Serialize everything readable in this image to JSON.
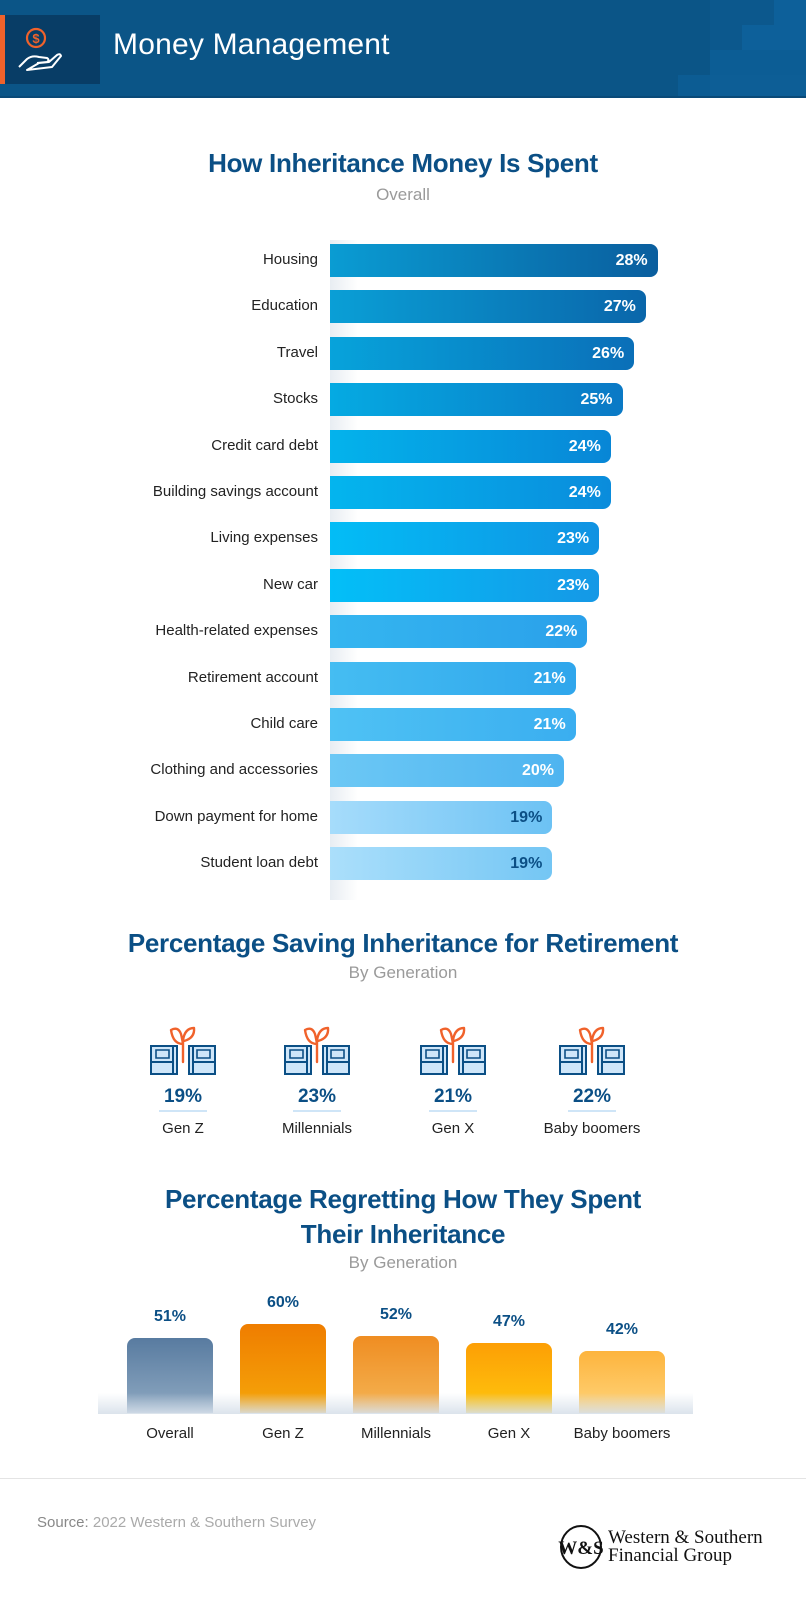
{
  "header": {
    "title": "Money Management",
    "icon": "hand-holding-dollar-icon",
    "accent": "#f0622b",
    "background": "#0b5587"
  },
  "chart_data": [
    {
      "type": "bar",
      "orientation": "horizontal",
      "title": "How Inheritance Money Is Spent",
      "subtitle": "Overall",
      "categories": [
        "Housing",
        "Education",
        "Travel",
        "Stocks",
        "Credit card debt",
        "Building savings account",
        "Living expenses",
        "New car",
        "Health-related expenses",
        "Retirement account",
        "Child care",
        "Clothing and accessories",
        "Down payment for home",
        "Student loan debt"
      ],
      "values": [
        28,
        27,
        26,
        25,
        24,
        24,
        23,
        23,
        22,
        21,
        21,
        20,
        19,
        19
      ],
      "labels": [
        "28%",
        "27%",
        "26%",
        "25%",
        "24%",
        "24%",
        "23%",
        "23%",
        "22%",
        "21%",
        "21%",
        "20%",
        "19%",
        "19%"
      ],
      "colors": [
        [
          "#0a9cd3",
          "#0a5e9e"
        ],
        [
          "#0a9fd6",
          "#0a66aa"
        ],
        [
          "#07a3db",
          "#0a6fb8"
        ],
        [
          "#05aae2",
          "#0a79c5"
        ],
        [
          "#04b3ec",
          "#0886d6"
        ],
        [
          "#04b5ee",
          "#0a8cdc"
        ],
        [
          "#03bdf6",
          "#1092e2"
        ],
        [
          "#03bff8",
          "#1598e6"
        ],
        [
          "#35b6f0",
          "#2aa0ea"
        ],
        [
          "#45bdf2",
          "#2fa6ec"
        ],
        [
          "#4fc2f4",
          "#3aaef0"
        ],
        [
          "#6cc8f5",
          "#4eb4f0"
        ],
        [
          "#a6dcfb",
          "#6cc2f4"
        ],
        [
          "#abdffb",
          "#74c6f4"
        ]
      ],
      "text_colors": [
        "#ffffff",
        "#ffffff",
        "#ffffff",
        "#ffffff",
        "#ffffff",
        "#ffffff",
        "#ffffff",
        "#ffffff",
        "#ffffff",
        "#ffffff",
        "#ffffff",
        "#ffffff",
        "#0b4f85",
        "#0b4f85"
      ]
    },
    {
      "type": "table",
      "title": "Percentage Saving Inheritance for Retirement",
      "subtitle": "By Generation",
      "categories": [
        "Gen Z",
        "Millennials",
        "Gen X",
        "Baby boomers"
      ],
      "values": [
        19,
        23,
        21,
        22
      ],
      "labels": [
        "19%",
        "23%",
        "21%",
        "22%"
      ],
      "icon": "money-stack-sprout-icon"
    },
    {
      "type": "bar",
      "orientation": "vertical",
      "title_lines": [
        "Percentage Regretting How They Spent",
        "Their Inheritance"
      ],
      "subtitle": "By Generation",
      "categories": [
        "Overall",
        "Gen Z",
        "Millennials",
        "Gen X",
        "Baby boomers"
      ],
      "values": [
        51,
        60,
        52,
        47,
        42
      ],
      "labels": [
        "51%",
        "60%",
        "52%",
        "47%",
        "42%"
      ],
      "colors": [
        [
          "#587ba0",
          "#8fa9c2"
        ],
        [
          "#ef7d00",
          "#f6a70a"
        ],
        [
          "#ef8d22",
          "#f5b555"
        ],
        [
          "#fd9f05",
          "#fec60e"
        ],
        [
          "#fdb43d",
          "#fed47c"
        ]
      ]
    }
  ],
  "footer": {
    "source_label": "Source:",
    "source_text": "2022 Western & Southern Survey",
    "logo_monogram": "W&S",
    "logo_line1": "Western & Southern",
    "logo_line2": "Financial Group"
  }
}
